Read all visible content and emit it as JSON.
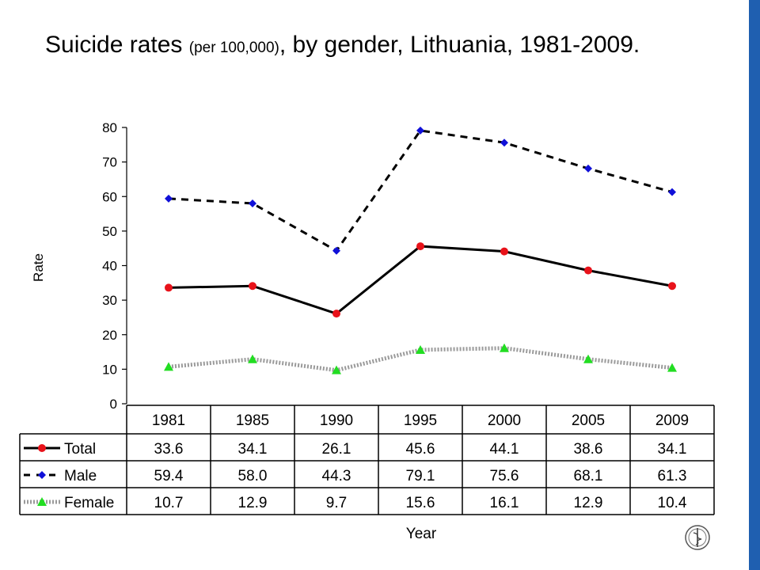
{
  "title": {
    "main_before": "Suicide rates",
    "small": "(per 100,000)",
    "main_after": ", by gender, Lithuania, 1981-2009."
  },
  "chart_data": {
    "type": "line",
    "categories": [
      "1981",
      "1985",
      "1990",
      "1995",
      "2000",
      "2005",
      "2009"
    ],
    "ylabel": "Rate",
    "xlabel": "Year",
    "ylim": [
      0,
      80
    ],
    "yticks": [
      0,
      10,
      20,
      30,
      40,
      50,
      60,
      70,
      80
    ],
    "grid": false,
    "legend": "data table below plot",
    "series": [
      {
        "name": "Total",
        "values": [
          33.6,
          34.1,
          26.1,
          45.6,
          44.1,
          38.6,
          34.1
        ],
        "labels": [
          "33.6",
          "34.1",
          "26.1",
          "45.6",
          "44.1",
          "38.6",
          "34.1"
        ],
        "color": "#e8121a",
        "line": "solid",
        "marker": "circle"
      },
      {
        "name": "Male",
        "values": [
          59.4,
          58.0,
          44.3,
          79.1,
          75.6,
          68.1,
          61.3
        ],
        "labels": [
          "59.4",
          "58.0",
          "44.3",
          "79.1",
          "75.6",
          "68.1",
          "61.3"
        ],
        "color": "#1010d8",
        "line": "dashed",
        "marker": "diamond"
      },
      {
        "name": "Female",
        "values": [
          10.7,
          12.9,
          9.7,
          15.6,
          16.1,
          12.9,
          10.4
        ],
        "labels": [
          "10.7",
          "12.9",
          "9.7",
          "15.6",
          "16.1",
          "12.9",
          "10.4"
        ],
        "color": "#22dd22",
        "line": "dotted",
        "marker": "triangle"
      }
    ]
  },
  "colors": {
    "right_bar": "#1f5fb0"
  },
  "logo": {
    "icon": "who-emblem-icon"
  }
}
